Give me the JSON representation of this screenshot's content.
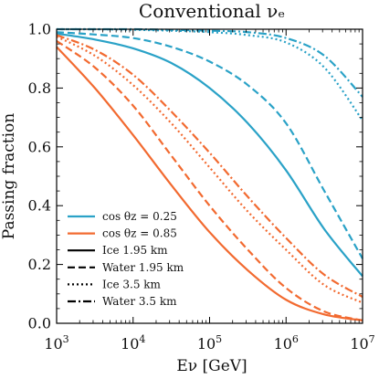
{
  "chart_data": {
    "type": "line",
    "title": "Conventional νₑ",
    "xlabel": "Eν [GeV]",
    "ylabel": "Passing fraction",
    "xscale": "log",
    "xlim": [
      1000,
      10000000
    ],
    "ylim": [
      0.0,
      1.0
    ],
    "x_ticks": [
      {
        "value": 1000,
        "base": "10",
        "exp": "3"
      },
      {
        "value": 10000,
        "base": "10",
        "exp": "4"
      },
      {
        "value": 100000,
        "base": "10",
        "exp": "5"
      },
      {
        "value": 1000000,
        "base": "10",
        "exp": "6"
      },
      {
        "value": 10000000,
        "base": "10",
        "exp": "7"
      }
    ],
    "y_ticks": [
      {
        "value": 0.0,
        "label": "0.0"
      },
      {
        "value": 0.2,
        "label": "0.2"
      },
      {
        "value": 0.4,
        "label": "0.4"
      },
      {
        "value": 0.6,
        "label": "0.6"
      },
      {
        "value": 0.8,
        "label": "0.8"
      },
      {
        "value": 1.0,
        "label": "1.0"
      }
    ],
    "grid": false,
    "legend_placement": "bottom-left",
    "colors": {
      "cos_025": "#2aa2c7",
      "cos_085": "#f26a30"
    },
    "legend": {
      "colors": [
        {
          "label": "cos θz = 0.25",
          "color": "#2aa2c7"
        },
        {
          "label": "cos θz = 0.85",
          "color": "#f26a30"
        }
      ],
      "styles": [
        {
          "label": "Ice 1.95 km",
          "dash": "solid"
        },
        {
          "label": "Water 1.95 km",
          "dash": "dashed"
        },
        {
          "label": "Ice 3.5 km",
          "dash": "dotted"
        },
        {
          "label": "Water 3.5 km",
          "dash": "dashdot"
        }
      ]
    },
    "x": [
      1000,
      3162,
      10000,
      31623,
      100000,
      316228,
      1000000,
      3162278,
      10000000
    ],
    "series": [
      {
        "cos": 0.25,
        "depth": "Ice 1.95 km",
        "color": "#2aa2c7",
        "dash": "solid",
        "values": [
          0.985,
          0.965,
          0.935,
          0.885,
          0.8,
          0.68,
          0.52,
          0.32,
          0.16
        ]
      },
      {
        "cos": 0.25,
        "depth": "Water 1.95 km",
        "color": "#2aa2c7",
        "dash": "dashed",
        "values": [
          0.99,
          0.982,
          0.97,
          0.94,
          0.89,
          0.81,
          0.68,
          0.45,
          0.22
        ]
      },
      {
        "cos": 0.25,
        "depth": "Ice 3.5 km",
        "color": "#2aa2c7",
        "dash": "dotted",
        "values": [
          1.0,
          1.0,
          0.998,
          0.995,
          0.99,
          0.98,
          0.955,
          0.87,
          0.69
        ]
      },
      {
        "cos": 0.25,
        "depth": "Water 3.5 km",
        "color": "#2aa2c7",
        "dash": "dashdot",
        "values": [
          1.0,
          1.0,
          1.0,
          0.998,
          0.995,
          0.99,
          0.97,
          0.91,
          0.77
        ]
      },
      {
        "cos": 0.85,
        "depth": "Ice 1.95 km",
        "color": "#f26a30",
        "dash": "solid",
        "values": [
          0.94,
          0.8,
          0.64,
          0.47,
          0.31,
          0.18,
          0.08,
          0.03,
          0.01
        ]
      },
      {
        "cos": 0.85,
        "depth": "Water 1.95 km",
        "color": "#f26a30",
        "dash": "dashed",
        "values": [
          0.96,
          0.87,
          0.74,
          0.57,
          0.4,
          0.25,
          0.12,
          0.04,
          0.01
        ]
      },
      {
        "cos": 0.85,
        "depth": "Ice 3.5 km",
        "color": "#f26a30",
        "dash": "dotted",
        "values": [
          0.975,
          0.91,
          0.81,
          0.68,
          0.53,
          0.38,
          0.25,
          0.13,
          0.07
        ]
      },
      {
        "cos": 0.85,
        "depth": "Water 3.5 km",
        "color": "#f26a30",
        "dash": "dashdot",
        "values": [
          0.98,
          0.93,
          0.845,
          0.72,
          0.58,
          0.43,
          0.29,
          0.165,
          0.09
        ]
      }
    ]
  }
}
